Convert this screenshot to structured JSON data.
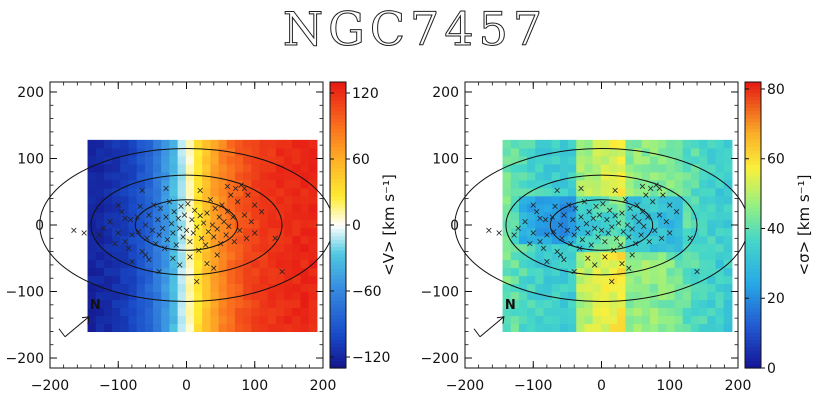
{
  "title": "NGC7457",
  "chart_data": [
    {
      "type": "heatmap",
      "quantity": "velocity",
      "xlim": [
        -200,
        200
      ],
      "ylim": [
        -215,
        215
      ],
      "xticks": [
        -200,
        -100,
        0,
        100,
        200
      ],
      "yticks": [
        -200,
        -100,
        0,
        100,
        200
      ],
      "grid": false,
      "map_extent": {
        "x": [
          -145,
          180
        ],
        "y": [
          -160,
          120
        ]
      },
      "cell_size": 12,
      "colorbar": {
        "label": "<V> [km s⁻¹]",
        "range": [
          -130,
          130
        ],
        "ticks": [
          -120,
          -60,
          0,
          60,
          120
        ]
      },
      "north_marker": "N"
    },
    {
      "type": "heatmap",
      "quantity": "dispersion",
      "xlim": [
        -200,
        200
      ],
      "ylim": [
        -215,
        215
      ],
      "xticks": [
        -200,
        -100,
        0,
        100,
        200
      ],
      "yticks": [
        -200,
        -100,
        0,
        100,
        200
      ],
      "grid": false,
      "map_extent": {
        "x": [
          -145,
          180
        ],
        "y": [
          -160,
          120
        ]
      },
      "cell_size": 12,
      "colorbar": {
        "label": "<σ> [km s⁻¹]",
        "range": [
          0,
          82
        ],
        "ticks": [
          0,
          20,
          40,
          60,
          80
        ]
      },
      "north_marker": "N"
    }
  ],
  "isophotes": [
    {
      "a": 215,
      "b": 115
    },
    {
      "a": 140,
      "b": 75
    },
    {
      "a": 75,
      "b": 38
    }
  ],
  "lenslet_points": [
    [
      -165,
      -8
    ],
    [
      -128,
      -15
    ],
    [
      -122,
      -5
    ],
    [
      -112,
      5
    ],
    [
      -100,
      -12
    ],
    [
      -95,
      20
    ],
    [
      -90,
      -25
    ],
    [
      -85,
      -35
    ],
    [
      -82,
      8
    ],
    [
      -80,
      -55
    ],
    [
      -72,
      12
    ],
    [
      -70,
      -10
    ],
    [
      -68,
      28
    ],
    [
      -65,
      -40
    ],
    [
      -60,
      0
    ],
    [
      -58,
      -20
    ],
    [
      -55,
      15
    ],
    [
      -50,
      -8
    ],
    [
      -48,
      30
    ],
    [
      -45,
      -28
    ],
    [
      -42,
      8
    ],
    [
      -40,
      -15
    ],
    [
      -38,
      25
    ],
    [
      -35,
      -5
    ],
    [
      -32,
      -35
    ],
    [
      -30,
      12
    ],
    [
      -28,
      -22
    ],
    [
      -25,
      35
    ],
    [
      -22,
      2
    ],
    [
      -20,
      -12
    ],
    [
      -18,
      20
    ],
    [
      -15,
      -30
    ],
    [
      -12,
      10
    ],
    [
      -10,
      -5
    ],
    [
      -8,
      28
    ],
    [
      -5,
      -18
    ],
    [
      -3,
      15
    ],
    [
      0,
      -8
    ],
    [
      2,
      32
    ],
    [
      5,
      -25
    ],
    [
      8,
      8
    ],
    [
      10,
      -12
    ],
    [
      12,
      22
    ],
    [
      15,
      -3
    ],
    [
      18,
      -38
    ],
    [
      20,
      14
    ],
    [
      22,
      -20
    ],
    [
      25,
      3
    ],
    [
      28,
      -30
    ],
    [
      30,
      18
    ],
    [
      32,
      -10
    ],
    [
      35,
      38
    ],
    [
      38,
      0
    ],
    [
      40,
      -18
    ],
    [
      42,
      25
    ],
    [
      45,
      -6
    ],
    [
      48,
      12
    ],
    [
      50,
      -28
    ],
    [
      52,
      30
    ],
    [
      55,
      5
    ],
    [
      58,
      -15
    ],
    [
      60,
      20
    ],
    [
      62,
      -2
    ],
    [
      65,
      45
    ],
    [
      68,
      12
    ],
    [
      70,
      -25
    ],
    [
      72,
      55
    ],
    [
      75,
      35
    ],
    [
      78,
      -8
    ],
    [
      80,
      60
    ],
    [
      85,
      15
    ],
    [
      88,
      -20
    ],
    [
      90,
      45
    ],
    [
      95,
      5
    ],
    [
      100,
      -12
    ],
    [
      110,
      20
    ],
    [
      -20,
      -50
    ],
    [
      -55,
      -52
    ],
    [
      5,
      -48
    ],
    [
      30,
      -58
    ],
    [
      45,
      -45
    ],
    [
      -100,
      30
    ],
    [
      -105,
      -28
    ],
    [
      -150,
      -12
    ],
    [
      85,
      55
    ],
    [
      100,
      30
    ],
    [
      130,
      -20
    ],
    [
      140,
      -70
    ],
    [
      60,
      58
    ],
    [
      -65,
      52
    ],
    [
      -30,
      55
    ],
    [
      20,
      52
    ],
    [
      -80,
      -15
    ],
    [
      -90,
      10
    ],
    [
      15,
      -85
    ],
    [
      40,
      -65
    ],
    [
      -10,
      -60
    ],
    [
      -40,
      -70
    ],
    [
      -60,
      -45
    ]
  ]
}
